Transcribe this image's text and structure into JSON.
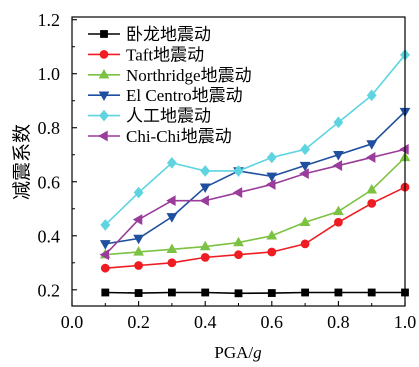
{
  "chart_data": {
    "type": "line",
    "xlabel": "PGA/g",
    "ylabel": "减震系数",
    "xlim": [
      0.0,
      1.0
    ],
    "ylim": [
      0.14,
      1.21
    ],
    "xticks": [
      "0.0",
      "0.2",
      "0.4",
      "0.6",
      "0.8",
      "1.0"
    ],
    "yticks": [
      "0.2",
      "0.4",
      "0.6",
      "0.8",
      "1.0",
      "1.2"
    ],
    "grid": false,
    "legend_position": "top-left",
    "x": [
      0.1,
      0.2,
      0.3,
      0.4,
      0.5,
      0.6,
      0.7,
      0.8,
      0.9,
      1.0
    ],
    "series": [
      {
        "name": "卧龙地震动",
        "color": "#000000",
        "marker": "square",
        "values": [
          0.19,
          0.188,
          0.19,
          0.19,
          0.187,
          0.188,
          0.19,
          0.19,
          0.19,
          0.19
        ]
      },
      {
        "name": "Taft地震动",
        "color": "#ee1d23",
        "marker": "circle",
        "values": [
          0.28,
          0.29,
          0.3,
          0.32,
          0.33,
          0.34,
          0.37,
          0.45,
          0.52,
          0.58
        ]
      },
      {
        "name": "Northridge地震动",
        "color": "#7cc242",
        "marker": "triangle-up",
        "values": [
          0.33,
          0.34,
          0.35,
          0.36,
          0.375,
          0.4,
          0.45,
          0.49,
          0.57,
          0.69
        ]
      },
      {
        "name": "El Centro地震动",
        "color": "#1f4f9e",
        "marker": "triangle-down",
        "values": [
          0.37,
          0.39,
          0.47,
          0.58,
          0.64,
          0.62,
          0.66,
          0.7,
          0.74,
          0.86
        ]
      },
      {
        "name": "人工地震动",
        "color": "#5fd4e1",
        "marker": "diamond",
        "values": [
          0.44,
          0.56,
          0.67,
          0.64,
          0.64,
          0.69,
          0.72,
          0.82,
          0.92,
          1.07
        ]
      },
      {
        "name": "Chi-Chi地震动",
        "color": "#9a3c9b",
        "marker": "triangle-left",
        "values": [
          0.33,
          0.46,
          0.53,
          0.53,
          0.56,
          0.59,
          0.63,
          0.66,
          0.69,
          0.72
        ]
      }
    ]
  }
}
